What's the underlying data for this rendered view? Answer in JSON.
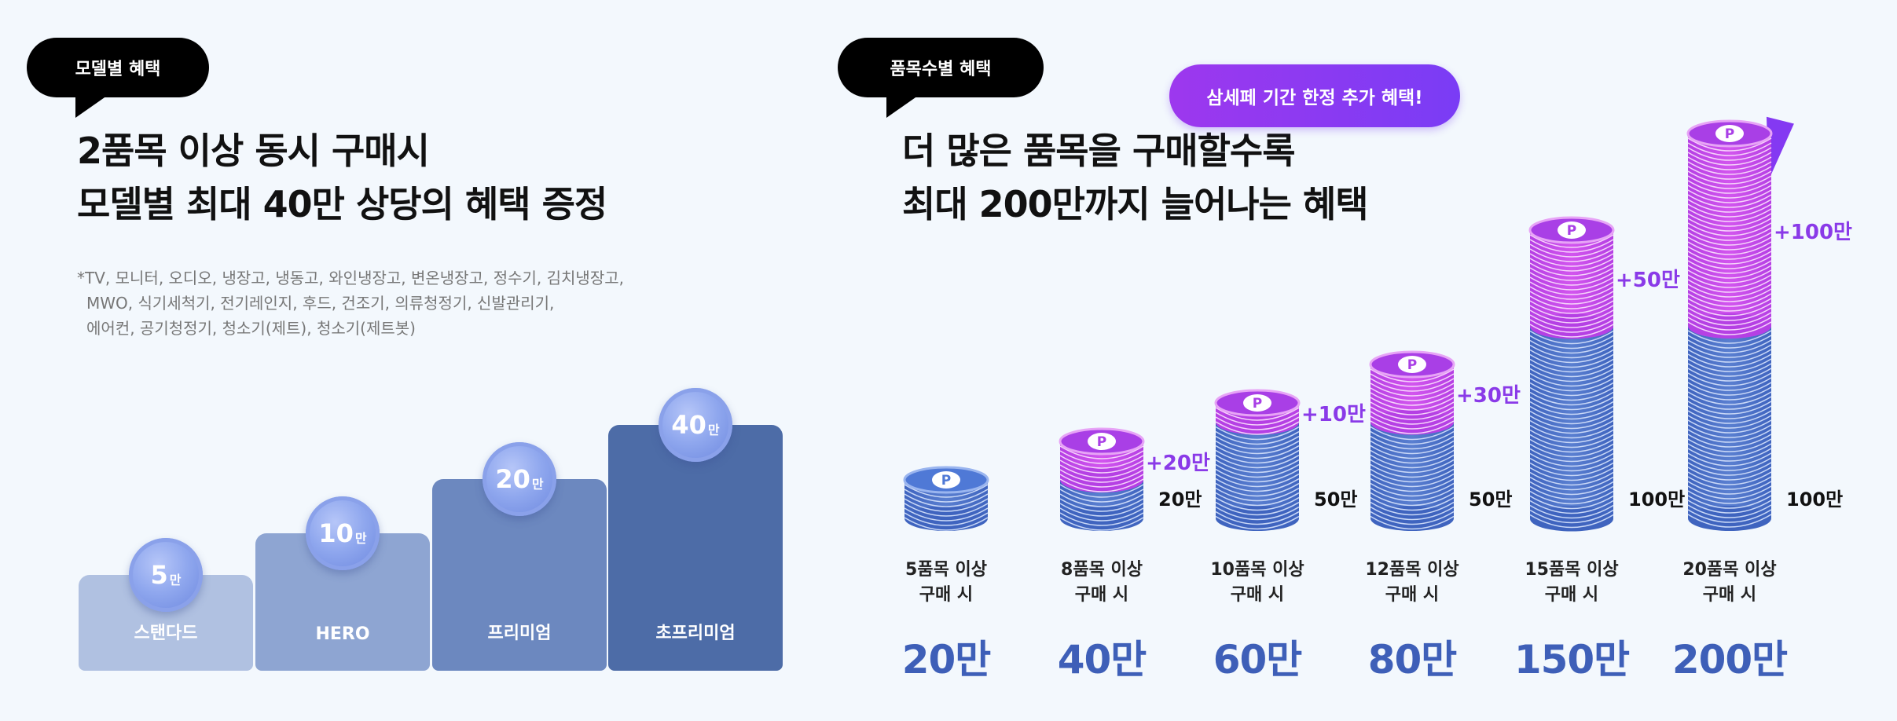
{
  "left": {
    "badge": "모델별 혜택",
    "headline": [
      "2품목 이상 동시 구매시",
      "모델별 최대 40만 상당의 혜택 증정"
    ],
    "note": [
      "*TV, 모니터, 오디오, 냉장고, 냉동고, 와인냉장고, 변온냉장고, 정수기, 김치냉장고,",
      "MWO, 식기세척기, 전기레인지, 후드, 건조기, 의류청정기, 신발관리기,",
      "에어컨, 공기청정기, 청소기(제트), 청소기(제트봇)"
    ],
    "tiers": [
      {
        "label": "스탠다드",
        "amount": "5",
        "unit": "만",
        "color": "#b0c1e1",
        "level": 1
      },
      {
        "label": "HERO",
        "amount": "10",
        "unit": "만",
        "color": "#8ea5d2",
        "level": 2
      },
      {
        "label": "프리미엄",
        "amount": "20",
        "unit": "만",
        "color": "#6c88bf",
        "level": 3
      },
      {
        "label": "초프리미엄",
        "amount": "40",
        "unit": "만",
        "color": "#4d6ca7",
        "level": 4
      }
    ]
  },
  "right": {
    "badge": "품목수별 혜택",
    "headline": [
      "더 많은 품목을 구매할수록",
      "최대 200만까지 늘어나는 혜택"
    ],
    "promo": "삼세페 기간 한정 추가 혜택!",
    "coin_symbol": "P",
    "colors": {
      "blue": "#5a7fd0",
      "purple": "#d255ee",
      "total": "#3e5fb8",
      "plus": "#8a3ae8"
    },
    "tiers": [
      {
        "condition": [
          "5품목 이상",
          "구매 시"
        ],
        "total": "20만",
        "base": "",
        "bonus": "",
        "blue_coins": 2,
        "purple_coins": 0
      },
      {
        "condition": [
          "8품목 이상",
          "구매 시"
        ],
        "total": "40만",
        "base": "20만",
        "bonus": "+20만",
        "blue_coins": 2,
        "purple_coins": 2
      },
      {
        "condition": [
          "10품목 이상",
          "구매 시"
        ],
        "total": "60만",
        "base": "50만",
        "bonus": "+10만",
        "blue_coins": 5,
        "purple_coins": 1
      },
      {
        "condition": [
          "12품목 이상",
          "구매 시"
        ],
        "total": "80만",
        "base": "50만",
        "bonus": "+30만",
        "blue_coins": 5,
        "purple_coins": 3
      },
      {
        "condition": [
          "15품목 이상",
          "구매 시"
        ],
        "total": "150만",
        "base": "100만",
        "bonus": "+50만",
        "blue_coins": 10,
        "purple_coins": 5
      },
      {
        "condition": [
          "20품목 이상",
          "구매 시"
        ],
        "total": "200만",
        "base": "100만",
        "bonus": "+100만",
        "blue_coins": 10,
        "purple_coins": 10
      }
    ]
  }
}
